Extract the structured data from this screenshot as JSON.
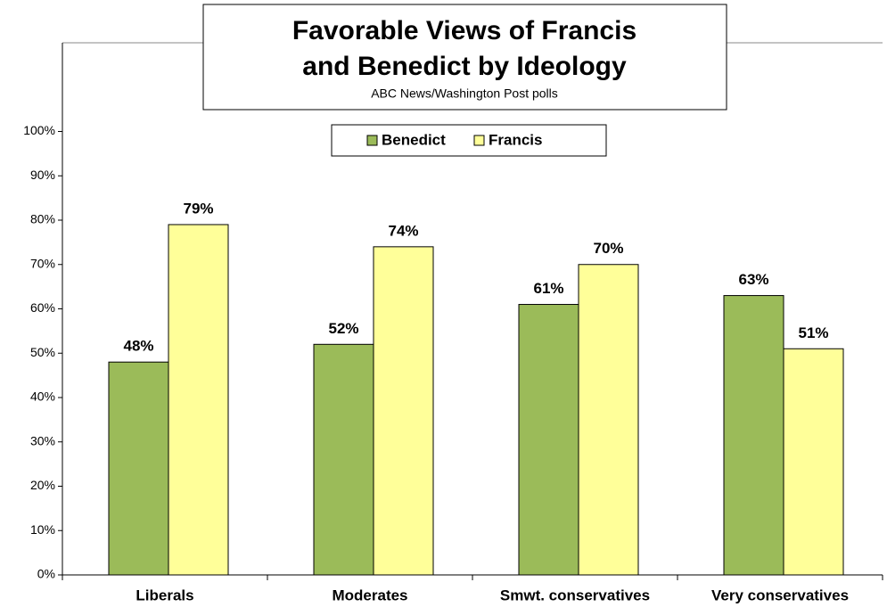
{
  "chart_data": {
    "type": "bar",
    "title": [
      "Favorable Views of Francis",
      "and Benedict by Ideology"
    ],
    "subtitle": "ABC News/Washington  Post polls",
    "categories": [
      "Liberals",
      "Moderates",
      "Smwt. conservatives",
      "Very conservatives"
    ],
    "series": [
      {
        "name": "Benedict",
        "color": "#9bbb59",
        "values": [
          48,
          52,
          61,
          63
        ],
        "value_labels": [
          "48%",
          "52%",
          "61%",
          "63%"
        ]
      },
      {
        "name": "Francis",
        "color": "#ffff99",
        "values": [
          79,
          74,
          70,
          51
        ],
        "value_labels": [
          "79%",
          "74%",
          "70%",
          "51%"
        ]
      }
    ],
    "ylim": [
      0,
      120
    ],
    "yticks": [
      {
        "value": 0,
        "label": "0%"
      },
      {
        "value": 10,
        "label": "10%"
      },
      {
        "value": 20,
        "label": "20%"
      },
      {
        "value": 30,
        "label": "30%"
      },
      {
        "value": 40,
        "label": "40%"
      },
      {
        "value": 50,
        "label": "50%"
      },
      {
        "value": 60,
        "label": "60%"
      },
      {
        "value": 70,
        "label": "70%"
      },
      {
        "value": 80,
        "label": "80%"
      },
      {
        "value": 90,
        "label": "90%"
      },
      {
        "value": 100,
        "label": "100%"
      }
    ],
    "grid": false,
    "legend": "top"
  }
}
